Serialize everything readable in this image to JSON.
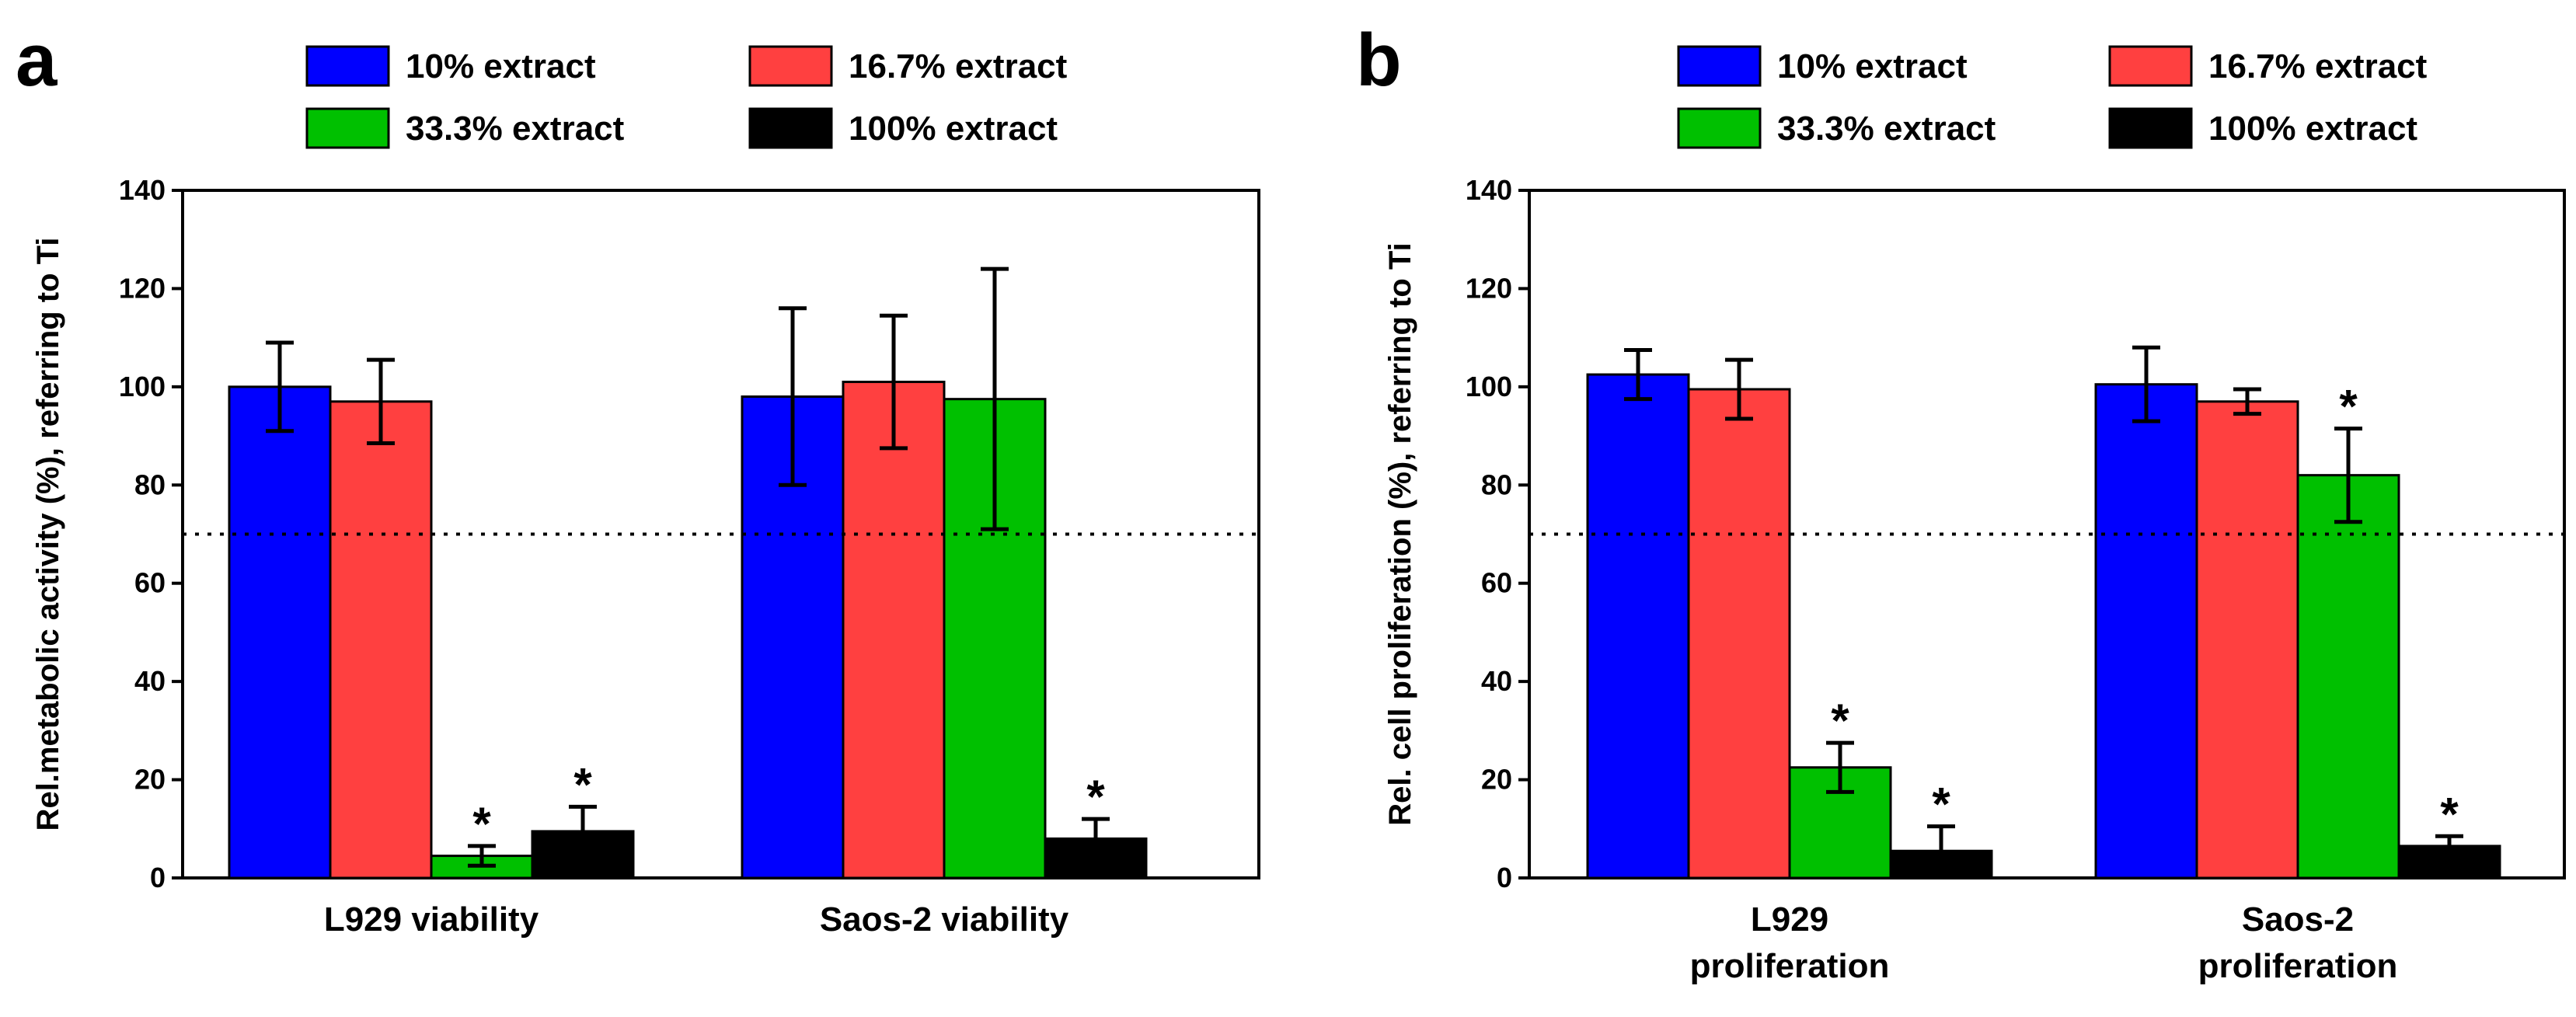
{
  "chart_data": [
    {
      "panel": "a",
      "type": "bar",
      "ylabel": "Rel.metabolic activity (%), referring to Ti",
      "ylim": [
        0,
        140
      ],
      "yticks": [
        0,
        20,
        40,
        60,
        80,
        100,
        120,
        140
      ],
      "reference_line": 70,
      "categories": [
        [
          "L929 viability"
        ],
        [
          "Saos-2 viability"
        ]
      ],
      "series": [
        {
          "name": "10% extract",
          "color": "#0000ff",
          "values": [
            100,
            98
          ],
          "errors": [
            9,
            18
          ],
          "significant": [
            false,
            false
          ]
        },
        {
          "name": "16.7% extract",
          "color": "#ff4040",
          "values": [
            97,
            101
          ],
          "errors": [
            8.5,
            13.5
          ],
          "significant": [
            false,
            false
          ]
        },
        {
          "name": "33.3% extract",
          "color": "#00c000",
          "values": [
            4.5,
            97.5
          ],
          "errors": [
            2,
            26.5
          ],
          "significant": [
            true,
            false
          ]
        },
        {
          "name": "100% extract",
          "color": "#000000",
          "values": [
            9.5,
            8
          ],
          "errors": [
            5,
            4
          ],
          "significant": [
            true,
            true
          ]
        }
      ]
    },
    {
      "panel": "b",
      "type": "bar",
      "ylabel": "Rel. cell proliferation  (%), referring to Ti",
      "ylim": [
        0,
        140
      ],
      "yticks": [
        0,
        20,
        40,
        60,
        80,
        100,
        120,
        140
      ],
      "reference_line": 70,
      "categories": [
        [
          "L929",
          "proliferation"
        ],
        [
          "Saos-2",
          "proliferation"
        ]
      ],
      "series": [
        {
          "name": "10% extract",
          "color": "#0000ff",
          "values": [
            102.5,
            100.5
          ],
          "errors": [
            5,
            7.5
          ],
          "significant": [
            false,
            false
          ]
        },
        {
          "name": "16.7% extract",
          "color": "#ff4040",
          "values": [
            99.5,
            97
          ],
          "errors": [
            6,
            2.5
          ],
          "significant": [
            false,
            false
          ]
        },
        {
          "name": "33.3% extract",
          "color": "#00c000",
          "values": [
            22.5,
            82
          ],
          "errors": [
            5,
            9.5
          ],
          "significant": [
            true,
            true
          ]
        },
        {
          "name": "100% extract",
          "color": "#000000",
          "values": [
            5.5,
            6.5
          ],
          "errors": [
            5,
            2
          ],
          "significant": [
            true,
            true
          ]
        }
      ]
    }
  ],
  "significance_marker": "*"
}
